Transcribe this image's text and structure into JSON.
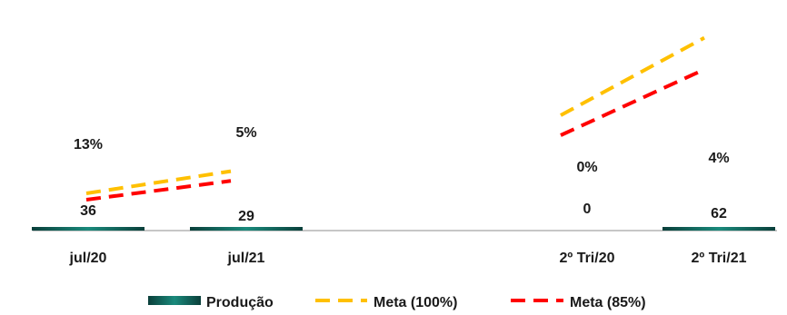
{
  "chart_data": {
    "type": "bar",
    "categories": [
      "jul/20",
      "jul/21",
      "2º Tri/20",
      "2º Tri/21"
    ],
    "groups": [
      {
        "categories": [
          "jul/20",
          "jul/21"
        ],
        "producao": [
          36,
          29
        ],
        "meta_100": [
          54.7,
          78.6
        ],
        "meta_85": [
          46.5,
          66.8
        ],
        "percent_labels": [
          "13%",
          "5%"
        ]
      },
      {
        "categories": [
          "2º Tri/20",
          "2º Tri/21"
        ],
        "producao": [
          0,
          62
        ],
        "meta_100": [
          488.3,
          899.1
        ],
        "meta_85": [
          415.1,
          764.2
        ],
        "percent_labels": [
          "0%",
          "4%"
        ]
      }
    ],
    "series": [
      {
        "name": "Produção",
        "kind": "bar",
        "color": "#0d5c53"
      },
      {
        "name": "Meta (100%)",
        "kind": "dashed-line",
        "color": "#ffc000"
      },
      {
        "name": "Meta (85%)",
        "kind": "dashed-line",
        "color": "#ff0000"
      }
    ],
    "legend": [
      "Produção",
      "Meta (100%)",
      "Meta (85%)"
    ],
    "legend_position": "bottom",
    "grid": false
  }
}
